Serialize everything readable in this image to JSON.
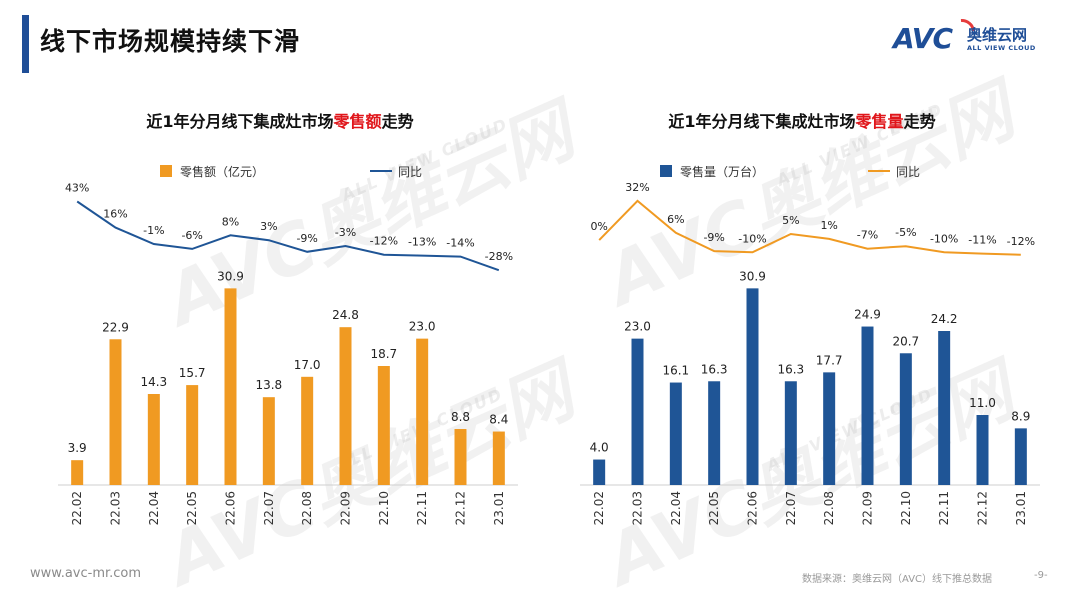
{
  "page": {
    "title": "线下市场规模持续下滑",
    "logo_mark": "AVC",
    "logo_cn": "奥维云网",
    "logo_en": "ALL VIEW CLOUD",
    "watermark": "AVC奥维云网",
    "watermark_sub": "ALL VIEW CLOUD",
    "footer_url": "www.avc-mr.com",
    "footer_source": "数据来源：奥维云网（AVC）线下推总数据",
    "footer_page": "-9-"
  },
  "chart_data": [
    {
      "type": "bar",
      "title_pre": "近1年分月线下集成灶市场",
      "title_highlight": "零售额",
      "title_post": "走势",
      "bar_series_name": "零售额（亿元）",
      "line_series_name": "同比",
      "bar_color": "#f09a22",
      "line_color": "#1f5596",
      "highlight_color": "#e0161b",
      "categories": [
        "22.02",
        "22.03",
        "22.04",
        "22.05",
        "22.06",
        "22.07",
        "22.08",
        "22.09",
        "22.10",
        "22.11",
        "22.12",
        "23.01"
      ],
      "bar_labels": [
        "3.9",
        "22.9",
        "14.3",
        "15.7",
        "30.9",
        "13.8",
        "17.0",
        "24.8",
        "18.7",
        "23.0",
        "8.8",
        "8.4"
      ],
      "values": [
        3.9,
        22.9,
        14.3,
        15.7,
        30.9,
        13.8,
        17.0,
        24.8,
        18.7,
        23.0,
        8.8,
        8.4
      ],
      "ylim": [
        0,
        33
      ],
      "line_values": [
        43,
        16,
        -1,
        -6,
        8,
        3,
        -9,
        -3,
        -12,
        -13,
        -14,
        -28
      ],
      "line_labels": [
        "43%",
        "16%",
        "-1%",
        "-6%",
        "8%",
        "3%",
        "-9%",
        "-3%",
        "-12%",
        "-13%",
        "-14%",
        "-28%"
      ],
      "line_ylim": [
        -250,
        60
      ]
    },
    {
      "type": "bar",
      "title_pre": "近1年分月线下集成灶市场",
      "title_highlight": "零售量",
      "title_post": "走势",
      "bar_series_name": "零售量（万台）",
      "line_series_name": "同比",
      "bar_color": "#1f5596",
      "line_color": "#f09a22",
      "highlight_color": "#e0161b",
      "categories": [
        "22.02",
        "22.03",
        "22.04",
        "22.05",
        "22.06",
        "22.07",
        "22.08",
        "22.09",
        "22.10",
        "22.11",
        "22.12",
        "23.01"
      ],
      "bar_labels": [
        "4.0",
        "23.0",
        "16.1",
        "16.3",
        "30.9",
        "16.3",
        "17.7",
        "24.9",
        "20.7",
        "24.2",
        "11.0",
        "8.9"
      ],
      "values": [
        4.0,
        23.0,
        16.1,
        16.3,
        30.9,
        16.3,
        17.7,
        24.9,
        20.7,
        24.2,
        11.0,
        8.9
      ],
      "ylim": [
        0,
        33
      ],
      "line_values": [
        0,
        32,
        6,
        -9,
        -10,
        5,
        1,
        -7,
        -5,
        -10,
        -11,
        -12
      ],
      "line_labels": [
        "0%",
        "32%",
        "6%",
        "-9%",
        "-10%",
        "5%",
        "1%",
        "-7%",
        "-5%",
        "-10%",
        "-11%",
        "-12%"
      ],
      "line_ylim": [
        -200,
        45
      ]
    }
  ]
}
